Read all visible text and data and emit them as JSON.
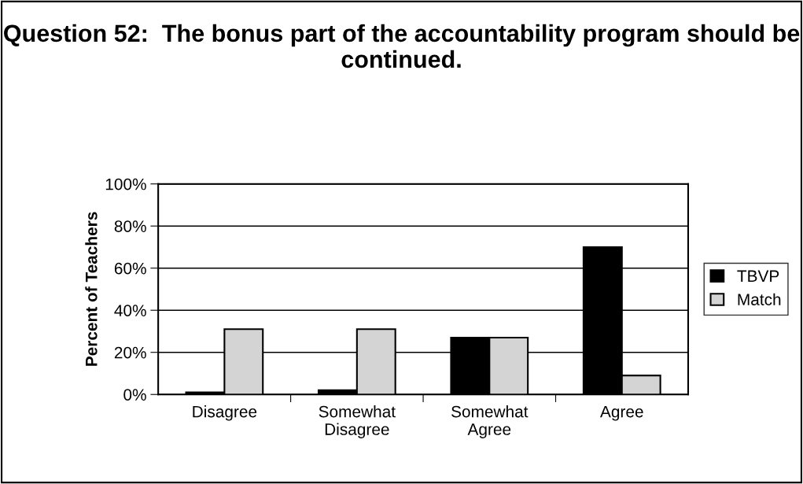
{
  "chart_data": {
    "type": "bar",
    "title": "Question 52:  The bonus part of the accountability program should be continued.",
    "ylabel": "Percent of Teachers",
    "categories": [
      "Disagree",
      "Somewhat\nDisagree",
      "Somewhat\nAgree",
      "Agree"
    ],
    "series": [
      {
        "name": "TBVP",
        "color": "#000000",
        "values": [
          1,
          2,
          27,
          70
        ]
      },
      {
        "name": "Match",
        "color": "#d4d4d4",
        "values": [
          31,
          31,
          27,
          9
        ]
      }
    ],
    "ylim": [
      0,
      100
    ],
    "yticks": [
      {
        "value": 0,
        "label": "0%"
      },
      {
        "value": 20,
        "label": "20%"
      },
      {
        "value": 40,
        "label": "40%"
      },
      {
        "value": 60,
        "label": "60%"
      },
      {
        "value": 80,
        "label": "80%"
      },
      {
        "value": 100,
        "label": "100%"
      }
    ],
    "grid": "y",
    "legend": "right"
  }
}
